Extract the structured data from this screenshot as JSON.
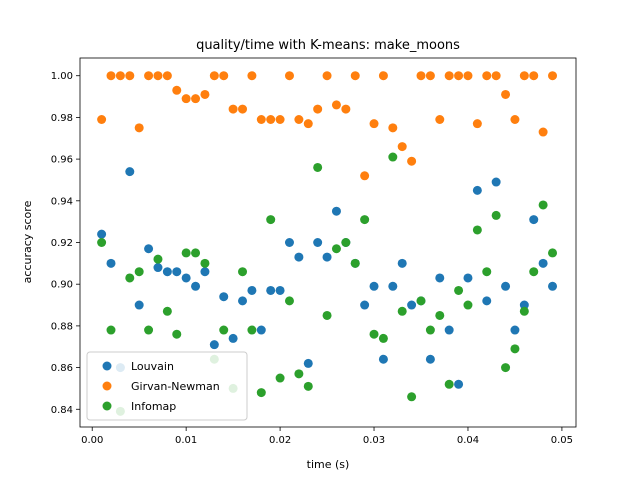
{
  "chart_data": {
    "type": "scatter",
    "title": "quality/time with K-means: make_moons",
    "xlabel": "time (s)",
    "ylabel": "accuracy score",
    "xlim": [
      -0.0013,
      0.0515
    ],
    "ylim": [
      0.8315,
      1.0085
    ],
    "xticks": [
      "0.00",
      "0.01",
      "0.02",
      "0.03",
      "0.04",
      "0.05"
    ],
    "xtick_values": [
      0.0,
      0.01,
      0.02,
      0.03,
      0.04,
      0.05
    ],
    "yticks": [
      "0.84",
      "0.86",
      "0.88",
      "0.90",
      "0.92",
      "0.94",
      "0.96",
      "0.98",
      "1.00"
    ],
    "ytick_values": [
      0.84,
      0.86,
      0.88,
      0.9,
      0.92,
      0.94,
      0.96,
      0.98,
      1.0
    ],
    "grid": false,
    "legend_position": "lower-left",
    "series": [
      {
        "name": "Louvain",
        "color": "#1f77b4",
        "points": [
          [
            0.001,
            0.924
          ],
          [
            0.002,
            0.91
          ],
          [
            0.003,
            0.86
          ],
          [
            0.004,
            0.954
          ],
          [
            0.005,
            0.89
          ],
          [
            0.006,
            0.917
          ],
          [
            0.007,
            0.908
          ],
          [
            0.008,
            0.906
          ],
          [
            0.009,
            0.906
          ],
          [
            0.01,
            0.903
          ],
          [
            0.011,
            0.899
          ],
          [
            0.012,
            0.906
          ],
          [
            0.013,
            0.871
          ],
          [
            0.014,
            0.894
          ],
          [
            0.015,
            0.874
          ],
          [
            0.016,
            0.892
          ],
          [
            0.017,
            0.897
          ],
          [
            0.018,
            0.878
          ],
          [
            0.019,
            0.897
          ],
          [
            0.02,
            0.897
          ],
          [
            0.021,
            0.92
          ],
          [
            0.022,
            0.913
          ],
          [
            0.023,
            0.862
          ],
          [
            0.024,
            0.92
          ],
          [
            0.025,
            0.913
          ],
          [
            0.026,
            0.935
          ],
          [
            0.027,
            0.92
          ],
          [
            0.028,
            0.91
          ],
          [
            0.029,
            0.89
          ],
          [
            0.03,
            0.899
          ],
          [
            0.031,
            0.864
          ],
          [
            0.032,
            0.899
          ],
          [
            0.033,
            0.91
          ],
          [
            0.034,
            0.89
          ],
          [
            0.035,
            0.892
          ],
          [
            0.036,
            0.864
          ],
          [
            0.037,
            0.903
          ],
          [
            0.038,
            0.878
          ],
          [
            0.039,
            0.852
          ],
          [
            0.04,
            0.903
          ],
          [
            0.041,
            0.945
          ],
          [
            0.042,
            0.892
          ],
          [
            0.043,
            0.949
          ],
          [
            0.044,
            0.899
          ],
          [
            0.045,
            0.878
          ],
          [
            0.046,
            0.89
          ],
          [
            0.047,
            0.931
          ],
          [
            0.048,
            0.91
          ],
          [
            0.049,
            0.899
          ]
        ]
      },
      {
        "name": "Girvan-Newman",
        "color": "#ff7f0e",
        "points": [
          [
            0.001,
            0.979
          ],
          [
            0.002,
            1.0
          ],
          [
            0.003,
            1.0
          ],
          [
            0.004,
            1.0
          ],
          [
            0.005,
            0.975
          ],
          [
            0.006,
            1.0
          ],
          [
            0.007,
            1.0
          ],
          [
            0.008,
            1.0
          ],
          [
            0.009,
            0.993
          ],
          [
            0.01,
            0.989
          ],
          [
            0.011,
            0.989
          ],
          [
            0.012,
            0.991
          ],
          [
            0.013,
            1.0
          ],
          [
            0.014,
            1.0
          ],
          [
            0.015,
            0.984
          ],
          [
            0.016,
            0.984
          ],
          [
            0.017,
            1.0
          ],
          [
            0.018,
            0.979
          ],
          [
            0.019,
            0.979
          ],
          [
            0.02,
            0.979
          ],
          [
            0.021,
            1.0
          ],
          [
            0.022,
            0.979
          ],
          [
            0.023,
            0.977
          ],
          [
            0.024,
            0.984
          ],
          [
            0.025,
            1.0
          ],
          [
            0.026,
            0.986
          ],
          [
            0.027,
            0.984
          ],
          [
            0.028,
            1.0
          ],
          [
            0.029,
            0.952
          ],
          [
            0.03,
            0.977
          ],
          [
            0.031,
            1.0
          ],
          [
            0.032,
            0.975
          ],
          [
            0.033,
            0.966
          ],
          [
            0.034,
            0.959
          ],
          [
            0.035,
            1.0
          ],
          [
            0.036,
            1.0
          ],
          [
            0.037,
            0.979
          ],
          [
            0.038,
            1.0
          ],
          [
            0.039,
            1.0
          ],
          [
            0.04,
            1.0
          ],
          [
            0.041,
            0.977
          ],
          [
            0.042,
            1.0
          ],
          [
            0.043,
            1.0
          ],
          [
            0.044,
            0.991
          ],
          [
            0.045,
            0.979
          ],
          [
            0.046,
            1.0
          ],
          [
            0.047,
            1.0
          ],
          [
            0.048,
            0.973
          ],
          [
            0.049,
            1.0
          ]
        ]
      },
      {
        "name": "Infomap",
        "color": "#2ca02c",
        "points": [
          [
            0.001,
            0.92
          ],
          [
            0.002,
            0.878
          ],
          [
            0.003,
            0.839
          ],
          [
            0.004,
            0.903
          ],
          [
            0.005,
            0.906
          ],
          [
            0.006,
            0.878
          ],
          [
            0.007,
            0.912
          ],
          [
            0.008,
            0.887
          ],
          [
            0.009,
            0.876
          ],
          [
            0.01,
            0.915
          ],
          [
            0.011,
            0.915
          ],
          [
            0.012,
            0.91
          ],
          [
            0.013,
            0.864
          ],
          [
            0.014,
            0.878
          ],
          [
            0.015,
            0.85
          ],
          [
            0.016,
            0.906
          ],
          [
            0.017,
            0.878
          ],
          [
            0.018,
            0.848
          ],
          [
            0.019,
            0.931
          ],
          [
            0.02,
            0.855
          ],
          [
            0.021,
            0.892
          ],
          [
            0.022,
            0.857
          ],
          [
            0.023,
            0.851
          ],
          [
            0.024,
            0.956
          ],
          [
            0.025,
            0.885
          ],
          [
            0.026,
            0.917
          ],
          [
            0.027,
            0.92
          ],
          [
            0.028,
            0.91
          ],
          [
            0.029,
            0.931
          ],
          [
            0.03,
            0.876
          ],
          [
            0.031,
            0.874
          ],
          [
            0.032,
            0.961
          ],
          [
            0.033,
            0.887
          ],
          [
            0.034,
            0.846
          ],
          [
            0.035,
            0.892
          ],
          [
            0.036,
            0.878
          ],
          [
            0.037,
            0.885
          ],
          [
            0.038,
            0.852
          ],
          [
            0.039,
            0.897
          ],
          [
            0.04,
            0.89
          ],
          [
            0.041,
            0.926
          ],
          [
            0.042,
            0.906
          ],
          [
            0.043,
            0.933
          ],
          [
            0.044,
            0.86
          ],
          [
            0.045,
            0.869
          ],
          [
            0.046,
            0.887
          ],
          [
            0.047,
            0.906
          ],
          [
            0.048,
            0.938
          ],
          [
            0.049,
            0.915
          ]
        ]
      }
    ]
  }
}
